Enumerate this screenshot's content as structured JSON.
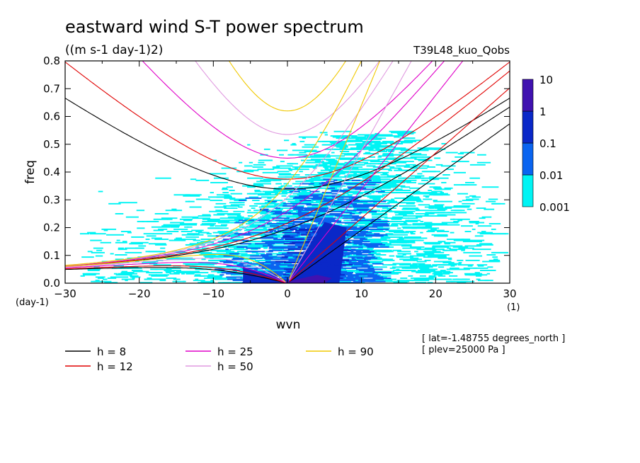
{
  "chart_data": {
    "type": "heatmap",
    "title": "eastward wind S-T power spectrum",
    "subtitle": "((m s-1 day-1)2)",
    "run_label": "T39L48_kuo_Qobs",
    "xlabel": "wvn",
    "ylabel": "freq",
    "x_unit": "(1)",
    "y_unit": "(day-1)",
    "xlim": [
      -30,
      30
    ],
    "ylim": [
      0,
      0.8
    ],
    "x_ticks": [
      -30,
      -20,
      -10,
      0,
      10,
      20,
      30
    ],
    "y_ticks": [
      0.0,
      0.1,
      0.2,
      0.3,
      0.4,
      0.5,
      0.6,
      0.7,
      0.8
    ],
    "y_tick_labels": [
      "0.0",
      "0.1",
      "0.2",
      "0.3",
      "0.4",
      "0.5",
      "0.6",
      "0.7",
      "0.8"
    ],
    "x_tick_labels": [
      "-30",
      "-20",
      "-10",
      "0",
      "10",
      "20",
      "30"
    ],
    "colorbar": {
      "levels": [
        0.001,
        0.01,
        0.1,
        1,
        10
      ],
      "labels": [
        "0.001",
        "0.01",
        "0.1",
        "1",
        "10"
      ],
      "colors": [
        "#00f4f4",
        "#0a64f0",
        "#0a28c8",
        "#4012b0"
      ]
    },
    "spectrum_regions": [
      {
        "level": "0.001-0.01",
        "kmin": -28,
        "kmax": 28,
        "fmin": 0.0,
        "fmax": 0.55
      },
      {
        "level": "0.01-0.1",
        "kmin": -10,
        "kmax": 12,
        "fmin": 0.0,
        "fmax": 0.38
      },
      {
        "level": "0.1-1",
        "kmin": -6,
        "kmax": 7,
        "fmin": 0.0,
        "fmax": 0.2
      },
      {
        "level": "1-10",
        "kmin": -3,
        "kmax": 6,
        "fmin": 0.0,
        "fmax": 0.03
      }
    ],
    "dispersion_curves": [
      {
        "name": "h =  8",
        "h": 8,
        "color": "#000000"
      },
      {
        "name": "h = 12",
        "h": 12,
        "color": "#e00000"
      },
      {
        "name": "h = 25",
        "h": 25,
        "color": "#e000c8"
      },
      {
        "name": "h = 50",
        "h": 50,
        "color": "#e09ae0"
      },
      {
        "name": "h = 90",
        "h": 90,
        "color": "#f0c800"
      }
    ],
    "legend_placement": "bottom",
    "annotations": [
      "[ lat=-1.48755 degrees_north ]",
      "[ plev=25000 Pa ]"
    ]
  }
}
